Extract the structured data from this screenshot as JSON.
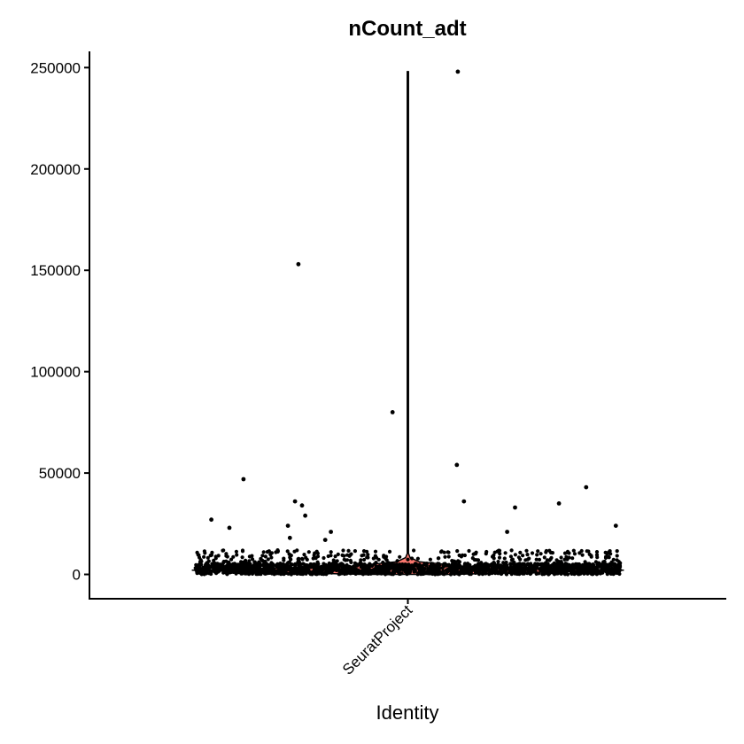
{
  "chart_data": {
    "type": "violin",
    "title": "nCount_adt",
    "xlabel": "Identity",
    "ylabel": "",
    "categories": [
      "SeuratProject"
    ],
    "y_ticks": [
      0,
      50000,
      100000,
      150000,
      200000,
      250000
    ],
    "y_tick_labels": [
      "0",
      "50000",
      "100000",
      "150000",
      "200000",
      "250000"
    ],
    "ylim": [
      -12000,
      258000
    ],
    "grid": false,
    "legend": "none",
    "violin": {
      "category": "SeuratProject",
      "min": 0,
      "max": 248000,
      "mode": 2200,
      "fill": "#f8766d",
      "outline": "#000000"
    },
    "jitter_points": {
      "approx_count": 2000,
      "bulk_range": [
        0,
        12000
      ],
      "outliers": [
        248000,
        153000,
        80000,
        54000,
        47000,
        43000,
        36000,
        36000,
        35000,
        34000,
        33000,
        29000,
        27000,
        24000,
        24000,
        23000,
        21000,
        21000,
        18000,
        17000
      ]
    },
    "colors": {
      "points": "#000000",
      "axis": "#000000"
    }
  }
}
